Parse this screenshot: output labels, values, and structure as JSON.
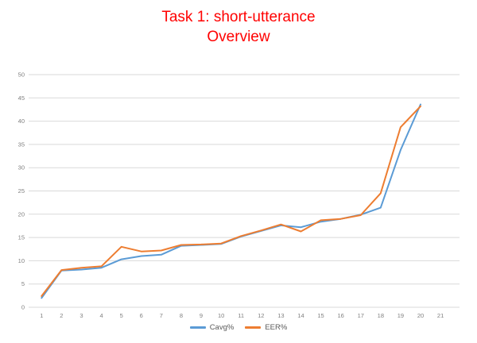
{
  "title": {
    "line1": "Task 1: short-utterance",
    "line2": "Overview",
    "color": "#ff0000"
  },
  "chart_data": {
    "type": "line",
    "x": [
      1,
      2,
      3,
      4,
      5,
      6,
      7,
      8,
      9,
      10,
      11,
      12,
      13,
      14,
      15,
      16,
      17,
      18,
      19,
      20
    ],
    "x_axis_ticks": [
      1,
      2,
      3,
      4,
      5,
      6,
      7,
      8,
      9,
      10,
      11,
      12,
      13,
      14,
      15,
      16,
      17,
      18,
      19,
      20,
      21
    ],
    "y_ticks": [
      0,
      5,
      10,
      15,
      20,
      25,
      30,
      35,
      40,
      45,
      50
    ],
    "ylim": [
      0,
      50
    ],
    "grid": true,
    "legend_position": "bottom",
    "series": [
      {
        "name": "Cavg%",
        "color": "#5B9BD5",
        "values": [
          2.0,
          7.9,
          8.1,
          8.5,
          10.3,
          11.0,
          11.3,
          13.2,
          13.4,
          13.6,
          15.2,
          16.4,
          17.6,
          17.2,
          18.4,
          19.0,
          19.9,
          21.4,
          33.8,
          43.6
        ]
      },
      {
        "name": "EER%",
        "color": "#ED7D31",
        "values": [
          2.4,
          8.0,
          8.5,
          8.8,
          13.0,
          12.0,
          12.2,
          13.4,
          13.5,
          13.7,
          15.3,
          16.5,
          17.8,
          16.3,
          18.7,
          19.0,
          19.8,
          24.5,
          38.7,
          43.2
        ]
      }
    ],
    "axis_colors": {
      "gridline": "#D9D9D9",
      "tick_label": "#7F7F7F"
    }
  }
}
